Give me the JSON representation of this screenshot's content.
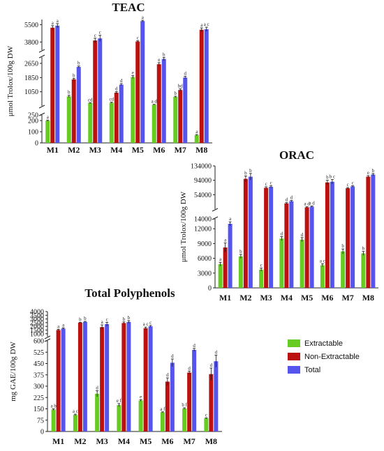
{
  "legend": [
    {
      "name": "Extractable",
      "color": "#66cc22"
    },
    {
      "name": "Non-Extractable",
      "color": "#bb1111"
    },
    {
      "name": "Total",
      "color": "#5555ee"
    }
  ],
  "chart_data": [
    {
      "type": "bar",
      "title": "TEAC",
      "ylabel": "μmol Trolox/100g DW",
      "categories": [
        "M1",
        "M2",
        "M3",
        "M4",
        "M5",
        "M6",
        "M7",
        "M8"
      ],
      "y_segments": [
        {
          "range": [
            0,
            250
          ],
          "ticks": [
            "0",
            "100",
            "200"
          ]
        },
        {
          "range": [
            250,
            3000
          ],
          "ticks": [
            "250",
            "1050",
            "1850",
            "2650"
          ]
        },
        {
          "range": [
            3000,
            6000
          ],
          "ticks": [
            "3800",
            "5500"
          ]
        }
      ],
      "series": [
        {
          "name": "Extractable",
          "values": [
            200,
            790,
            415,
            430,
            1880,
            320,
            760,
            70
          ],
          "errors": [
            5,
            60,
            20,
            30,
            80,
            20,
            40,
            5
          ],
          "letters": [
            "a",
            "b",
            "cd",
            "cd",
            "e",
            "a d",
            "b",
            "a"
          ]
        },
        {
          "name": "Non-Extractable",
          "values": [
            5200,
            1750,
            3950,
            1000,
            3850,
            2600,
            1150,
            5000
          ],
          "errors": [
            200,
            60,
            220,
            60,
            80,
            90,
            70,
            180
          ],
          "letters": [
            "a",
            "b",
            "c",
            "d",
            "c",
            "e",
            "bd",
            "a"
          ]
        },
        {
          "name": "Total",
          "values": [
            5400,
            2450,
            4150,
            1450,
            5850,
            2900,
            1850,
            5050
          ],
          "errors": [
            200,
            50,
            300,
            60,
            80,
            90,
            70,
            200
          ],
          "letters": [
            "a",
            "b",
            "c",
            "d",
            "a",
            "b",
            "d",
            "a c"
          ]
        }
      ]
    },
    {
      "type": "bar",
      "title": "ORAC",
      "ylabel": "μmol Trolox/100g DW",
      "categories": [
        "M1",
        "M2",
        "M3",
        "M4",
        "M5",
        "M6",
        "M7",
        "M8"
      ],
      "y_segments": [
        {
          "range": [
            0,
            14000
          ],
          "ticks": [
            "0",
            "3000",
            "6000",
            "9000",
            "12000"
          ]
        },
        {
          "range": [
            14000,
            134000
          ],
          "ticks": [
            "14000",
            "54000",
            "94000",
            "134000"
          ]
        }
      ],
      "series": [
        {
          "name": "Extractable",
          "values": [
            4800,
            6400,
            3700,
            10000,
            9800,
            4600,
            7400,
            7000
          ],
          "errors": [
            400,
            400,
            300,
            400,
            400,
            300,
            500,
            400
          ],
          "letters": [
            "a",
            "b",
            "c",
            "d",
            "d",
            "a c",
            "b",
            "b"
          ]
        },
        {
          "name": "Non-Extractable",
          "values": [
            8200,
            98000,
            73000,
            30000,
            19000,
            88000,
            72000,
            104000
          ],
          "errors": [
            900,
            8000,
            3000,
            2000,
            1500,
            6000,
            2000,
            3000
          ],
          "letters": [
            "a",
            "b",
            "c",
            "d",
            "a d",
            "b",
            "c",
            "e"
          ]
        },
        {
          "name": "Total",
          "values": [
            13000,
            104000,
            76000,
            36000,
            21000,
            90000,
            77000,
            110000
          ],
          "errors": [
            400,
            9000,
            3000,
            2000,
            1500,
            6000,
            2000,
            3000
          ],
          "letters": [
            "a",
            "b",
            "c",
            "d",
            "a d",
            "b c",
            "c",
            "b"
          ]
        }
      ]
    },
    {
      "type": "bar",
      "title": "Total Polyphenols",
      "ylabel": "mg GAE/100g DW",
      "categories": [
        "M1",
        "M2",
        "M3",
        "M4",
        "M5",
        "M6",
        "M7",
        "M8"
      ],
      "y_segments": [
        {
          "range": [
            0,
            600
          ],
          "ticks": [
            "0",
            "75",
            "150",
            "225",
            "300",
            "375",
            "450",
            "525",
            "600"
          ]
        },
        {
          "range": [
            600,
            4000
          ],
          "ticks": [
            "1000",
            "1500",
            "2000",
            "2500",
            "3000",
            "3500",
            "4000"
          ]
        }
      ],
      "series": [
        {
          "name": "Extractable",
          "values": [
            145,
            110,
            250,
            175,
            205,
            127,
            152,
            87
          ],
          "errors": [
            5,
            5,
            20,
            10,
            5,
            3,
            5,
            3
          ],
          "letters": [
            "a b",
            "a c",
            "d",
            "e f",
            "e",
            "a f",
            "b f",
            "c"
          ]
        },
        {
          "name": "Non-Extractable",
          "values": [
            1500,
            2500,
            1900,
            2450,
            1750,
            330,
            390,
            380
          ],
          "errors": [
            100,
            50,
            300,
            150,
            150,
            25,
            10,
            40
          ],
          "letters": [
            "a",
            "b",
            "a",
            "b",
            "a c",
            "d",
            "d",
            "d"
          ]
        },
        {
          "name": "Total",
          "values": [
            1700,
            2600,
            2300,
            2600,
            2000,
            455,
            540,
            465
          ],
          "errors": [
            100,
            80,
            250,
            180,
            120,
            25,
            10,
            40
          ],
          "letters": [
            "a",
            "b",
            "c",
            "b",
            "c",
            "d",
            "d",
            "d"
          ]
        }
      ]
    }
  ]
}
